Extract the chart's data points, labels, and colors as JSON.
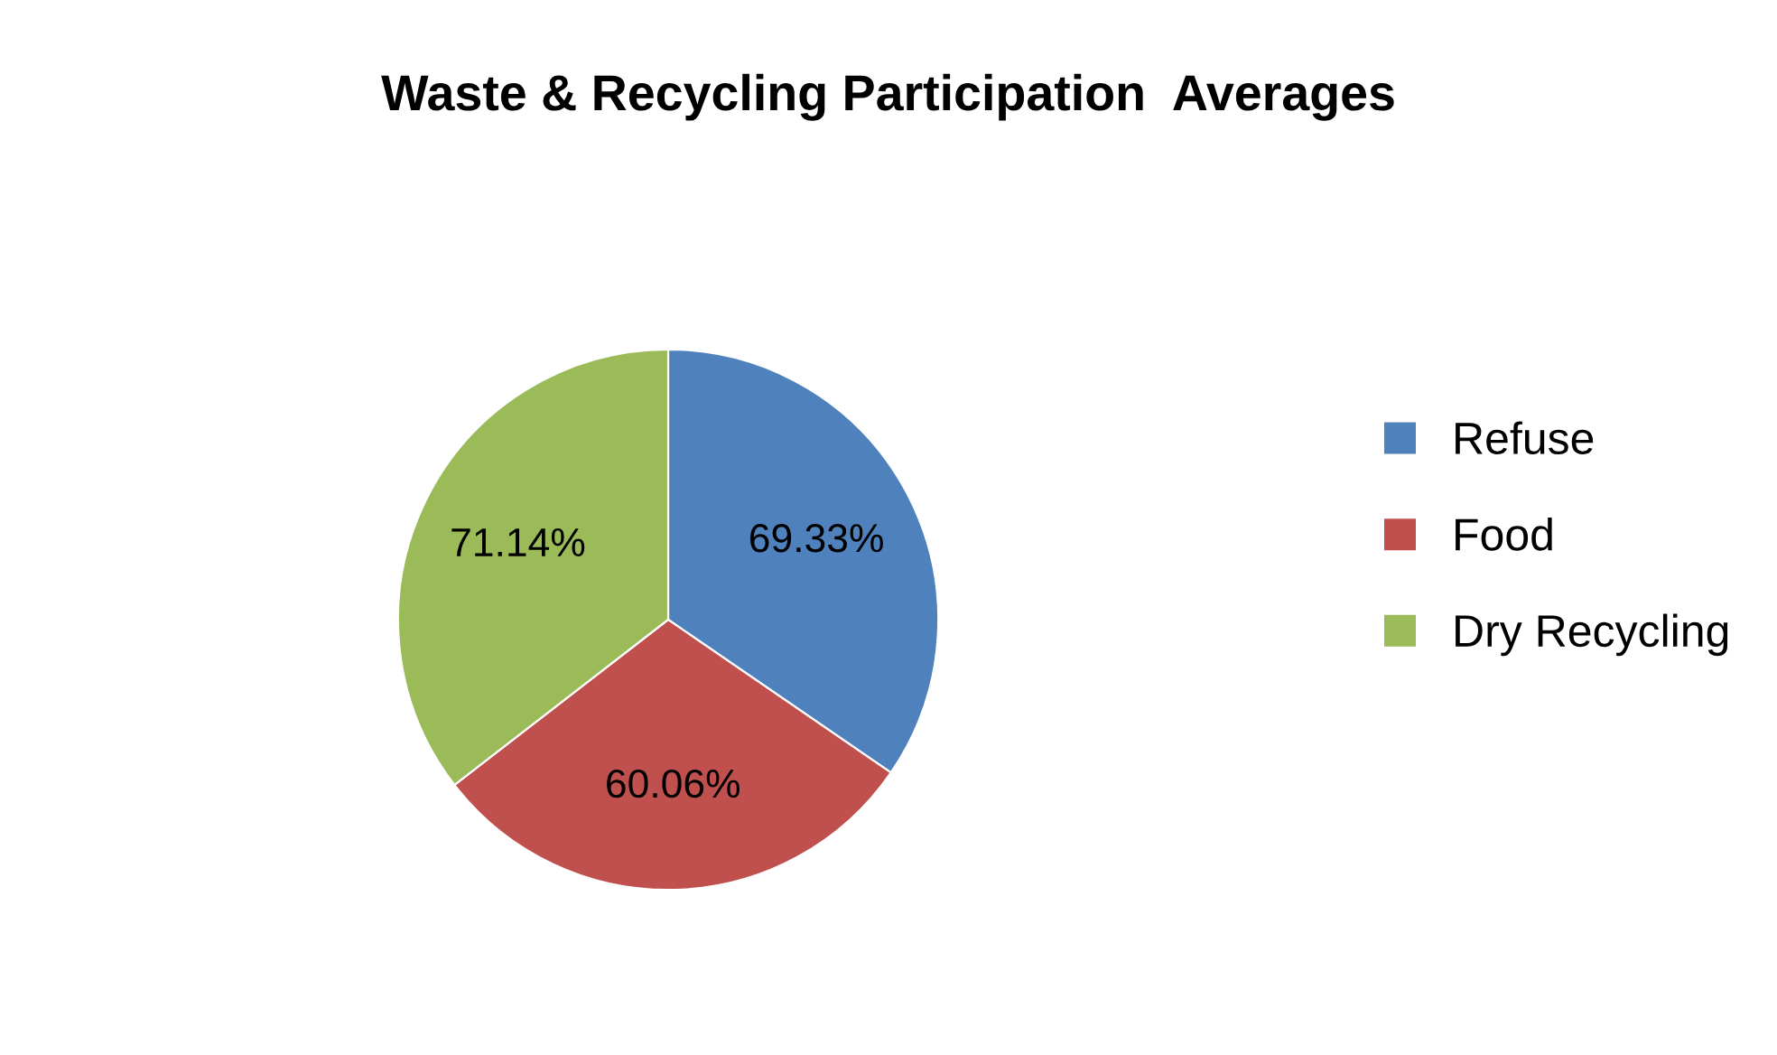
{
  "chart_data": {
    "type": "pie",
    "title": "Waste & Recycling Participation  Averages",
    "categories": [
      "Refuse",
      "Food",
      "Dry Recycling"
    ],
    "values": [
      69.33,
      60.06,
      71.14
    ],
    "colors": [
      "#4f81bd",
      "#c0504d",
      "#9bbb59"
    ],
    "value_labels": [
      "69.33%",
      "60.06%",
      "71.14%"
    ],
    "legend": "right"
  }
}
